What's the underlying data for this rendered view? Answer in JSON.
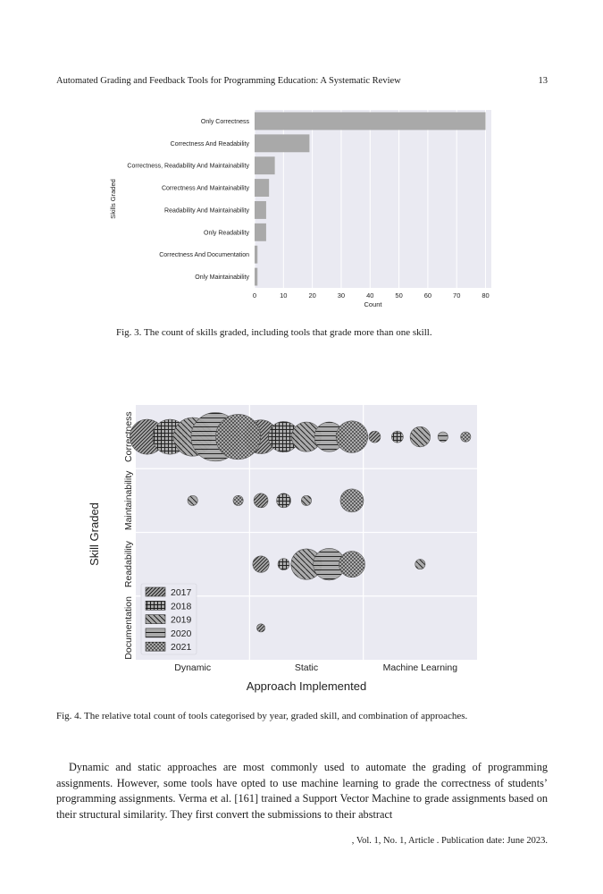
{
  "header": {
    "running_title": "Automated Grading and Feedback Tools for Programming Education: A Systematic Review",
    "page_number": "13"
  },
  "figure3": {
    "caption": "Fig. 3.  The count of skills graded, including tools that grade more than one skill.",
    "chart_data": {
      "type": "bar",
      "orientation": "horizontal",
      "categories": [
        "Only Correctness",
        "Correctness And Readability",
        "Correctness, Readability And Maintainability",
        "Correctness And Maintainability",
        "Readability And Maintainability",
        "Only Readability",
        "Correctness And Documentation",
        "Only Maintainability"
      ],
      "values": [
        80,
        19,
        7,
        5,
        4,
        4,
        1,
        1
      ],
      "xlabel": "Count",
      "ylabel": "Skills Graded",
      "xlim": [
        0,
        82
      ],
      "xticks": [
        0,
        10,
        20,
        30,
        40,
        50,
        60,
        70,
        80
      ],
      "bar_color": "#a9a9a9",
      "background": "#eaeaf2"
    }
  },
  "figure4": {
    "caption": "Fig. 4.  The relative total count of tools categorised by year, graded skill, and combination of approaches.",
    "chart_data": {
      "type": "scatter",
      "x_categories": [
        "Dynamic",
        "Static",
        "Machine Learning"
      ],
      "y_categories": [
        "Correctness",
        "Maintainability",
        "Readability",
        "Documentation"
      ],
      "xlabel": "Approach Implemented",
      "ylabel": "Skill Graded",
      "legend": {
        "placement": "lower-left",
        "entries": [
          "2017",
          "2018",
          "2019",
          "2020",
          "2021"
        ]
      },
      "series": [
        {
          "name": "2017",
          "pattern": "diagonal-hatch",
          "points": [
            {
              "x": "Dynamic",
              "y": "Correctness",
              "size": 18
            },
            {
              "x": "Static",
              "y": "Correctness",
              "size": 17
            },
            {
              "x": "Machine Learning",
              "y": "Correctness",
              "size": 2
            },
            {
              "x": "Static",
              "y": "Maintainability",
              "size": 3
            },
            {
              "x": "Static",
              "y": "Readability",
              "size": 4
            },
            {
              "x": "Static",
              "y": "Documentation",
              "size": 1
            }
          ]
        },
        {
          "name": "2018",
          "pattern": "grid",
          "points": [
            {
              "x": "Dynamic",
              "y": "Correctness",
              "size": 18
            },
            {
              "x": "Static",
              "y": "Correctness",
              "size": 14
            },
            {
              "x": "Machine Learning",
              "y": "Correctness",
              "size": 2
            },
            {
              "x": "Static",
              "y": "Maintainability",
              "size": 3
            },
            {
              "x": "Static",
              "y": "Readability",
              "size": 2
            }
          ]
        },
        {
          "name": "2019",
          "pattern": "back-diagonal",
          "points": [
            {
              "x": "Dynamic",
              "y": "Correctness",
              "size": 22
            },
            {
              "x": "Static",
              "y": "Correctness",
              "size": 13
            },
            {
              "x": "Machine Learning",
              "y": "Correctness",
              "size": 6
            },
            {
              "x": "Dynamic",
              "y": "Maintainability",
              "size": 1.5
            },
            {
              "x": "Static",
              "y": "Maintainability",
              "size": 1.5
            },
            {
              "x": "Static",
              "y": "Readability",
              "size": 14
            },
            {
              "x": "Machine Learning",
              "y": "Readability",
              "size": 1.5
            }
          ]
        },
        {
          "name": "2020",
          "pattern": "horizontal",
          "points": [
            {
              "x": "Dynamic",
              "y": "Correctness",
              "size": 35
            },
            {
              "x": "Static",
              "y": "Correctness",
              "size": 13
            },
            {
              "x": "Machine Learning",
              "y": "Correctness",
              "size": 1.5
            },
            {
              "x": "Static",
              "y": "Readability",
              "size": 15
            }
          ]
        },
        {
          "name": "2021",
          "pattern": "dots",
          "points": [
            {
              "x": "Dynamic",
              "y": "Correctness",
              "size": 30
            },
            {
              "x": "Static",
              "y": "Correctness",
              "size": 15
            },
            {
              "x": "Machine Learning",
              "y": "Correctness",
              "size": 1.5
            },
            {
              "x": "Dynamic",
              "y": "Maintainability",
              "size": 1.5
            },
            {
              "x": "Static",
              "y": "Maintainability",
              "size": 8
            },
            {
              "x": "Static",
              "y": "Readability",
              "size": 10
            }
          ]
        }
      ]
    }
  },
  "body": {
    "paragraph": "Dynamic and static approaches are most commonly used to automate the grading of programming assignments. However, some tools have opted to use machine learning to grade the correctness of students’ programming assignments. Verma et al. [161] trained a Support Vector Machine to grade assignments based on their structural similarity. They first convert the submissions to their abstract"
  },
  "footer": {
    "text": ", Vol. 1, No. 1, Article . Publication date: June 2023."
  }
}
